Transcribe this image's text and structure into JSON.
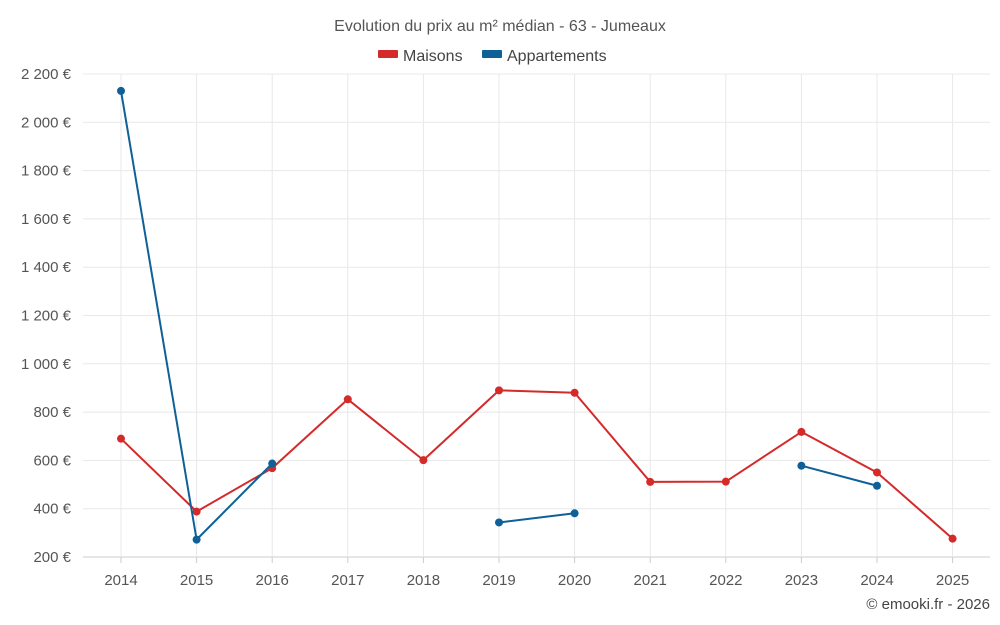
{
  "chart_data": {
    "type": "line",
    "title": "Evolution du prix au m² médian - 63 - Jumeaux",
    "categories": [
      "2014",
      "2015",
      "2016",
      "2017",
      "2018",
      "2019",
      "2020",
      "2021",
      "2022",
      "2023",
      "2024",
      "2025"
    ],
    "series": [
      {
        "name": "Maisons",
        "color": "#d42a2a",
        "values": [
          690,
          388,
          568,
          853,
          601,
          890,
          880,
          511,
          512,
          718,
          550,
          276
        ]
      },
      {
        "name": "Appartements",
        "color": "#0e6096",
        "values": [
          2130,
          272,
          587,
          null,
          null,
          343,
          381,
          null,
          null,
          578,
          495,
          null
        ]
      }
    ],
    "ylim": [
      200,
      2200
    ],
    "yticks": [
      200,
      400,
      600,
      800,
      1000,
      1200,
      1400,
      1600,
      1800,
      2000,
      2200
    ],
    "ytick_labels": [
      "200 €",
      "400 €",
      "600 €",
      "800 €",
      "1 000 €",
      "1 200 €",
      "1 400 €",
      "1 600 €",
      "1 800 €",
      "2 000 €",
      "2 200 €"
    ],
    "xlabel": "",
    "ylabel": "",
    "grid": true,
    "legend_position": "top-center"
  },
  "credit": "© emooki.fr - 2026"
}
